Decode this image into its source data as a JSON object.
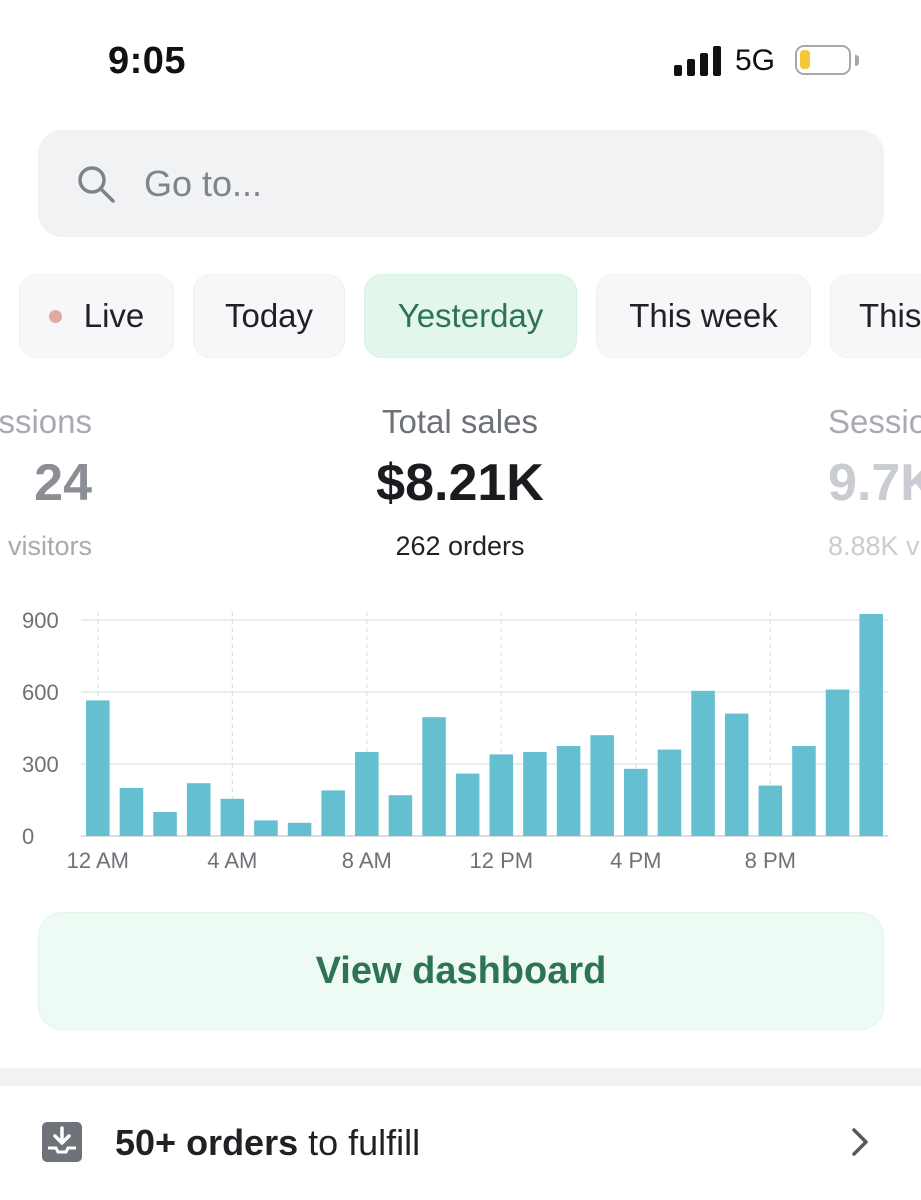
{
  "status_bar": {
    "time": "9:05",
    "network": "5G",
    "battery_level": 0.22,
    "battery_color": "#f6c737"
  },
  "search": {
    "placeholder": "Go to...",
    "value": "",
    "icon": "search-icon"
  },
  "tabs": [
    {
      "label": "Live",
      "has_dot": true,
      "active": false
    },
    {
      "label": "Today",
      "active": false
    },
    {
      "label": "Yesterday",
      "active": true
    },
    {
      "label": "This week",
      "active": false
    },
    {
      "label": "This",
      "active": false
    }
  ],
  "metrics": {
    "left": {
      "label": "ssions",
      "value": "24",
      "sub": "visitors"
    },
    "center": {
      "label": "Total sales",
      "value": "$8.21K",
      "sub": "262 orders"
    },
    "right": {
      "label": "Sessio",
      "value": "9.7K",
      "sub": "8.88K v"
    }
  },
  "chart_data": {
    "type": "bar",
    "categories": [
      "12 AM",
      "1 AM",
      "2 AM",
      "3 AM",
      "4 AM",
      "5 AM",
      "6 AM",
      "7 AM",
      "8 AM",
      "9 AM",
      "10 AM",
      "11 AM",
      "12 PM",
      "1 PM",
      "2 PM",
      "3 PM",
      "4 PM",
      "5 PM",
      "6 PM",
      "7 PM",
      "8 PM",
      "9 PM",
      "10 PM",
      "11 PM"
    ],
    "values": [
      565,
      200,
      100,
      220,
      155,
      65,
      55,
      190,
      350,
      170,
      495,
      260,
      340,
      350,
      375,
      420,
      280,
      360,
      605,
      510,
      210,
      375,
      610,
      925
    ],
    "x_tick_labels": [
      "12 AM",
      "4 AM",
      "8 AM",
      "12 PM",
      "4 PM",
      "8 PM"
    ],
    "x_tick_indices": [
      0,
      4,
      8,
      12,
      16,
      20
    ],
    "y_ticks": [
      0,
      300,
      600,
      900
    ],
    "y_tick_labels": [
      "0",
      "300",
      "600",
      "900"
    ],
    "ylim": [
      0,
      925
    ],
    "bar_color": "#64bfd1",
    "grid": true
  },
  "actions": {
    "view_dashboard": "View dashboard"
  },
  "fulfill": {
    "count": "50+ orders",
    "suffix": " to fulfill",
    "icon": "inbox-download-icon"
  },
  "colors": {
    "accent_green": "#2f7356",
    "active_tab_bg": "#e3f6ec",
    "button_bg": "#eefaf4"
  }
}
